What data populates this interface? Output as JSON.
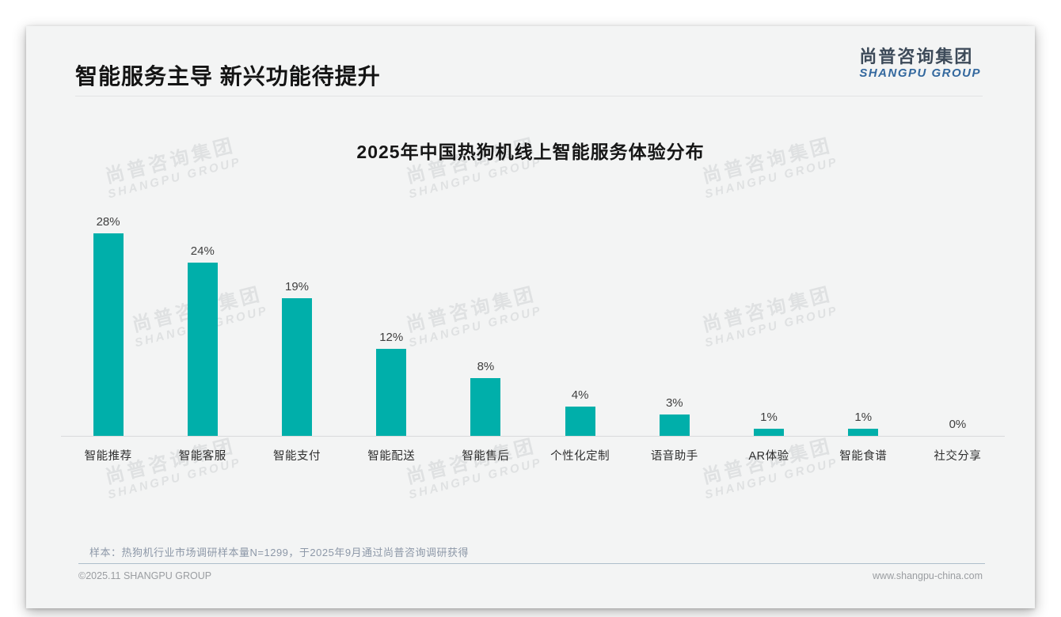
{
  "slide": {
    "title": "智能服务主导 新兴功能待提升",
    "logo": {
      "cn": "尚普咨询集团",
      "en": "SHANGPU GROUP"
    },
    "watermark": {
      "cn": "尚普咨询集团",
      "en": "SHANGPU GROUP"
    },
    "sample_note": "样本：热狗机行业市场调研样本量N=1299，于2025年9月通过尚普咨询调研获得",
    "footer_left": "©2025.11 SHANGPU GROUP",
    "footer_right": "www.shangpu-china.com"
  },
  "chart_data": {
    "type": "bar",
    "title": "2025年中国热狗机线上智能服务体验分布",
    "categories": [
      "智能推荐",
      "智能客服",
      "智能支付",
      "智能配送",
      "智能售后",
      "个性化定制",
      "语音助手",
      "AR体验",
      "智能食谱",
      "社交分享"
    ],
    "values": [
      28,
      24,
      19,
      12,
      8,
      4,
      3,
      1,
      1,
      0
    ],
    "value_labels": [
      "28%",
      "24%",
      "19%",
      "12%",
      "8%",
      "4%",
      "3%",
      "1%",
      "1%",
      "0%"
    ],
    "xlabel": "",
    "ylabel": "",
    "ylim": [
      0,
      30
    ],
    "grid": false,
    "legend": null,
    "bar_color": "#00afaa",
    "value_label_color": "#3f3f3f",
    "axis_line_color": "#d9dadb"
  }
}
